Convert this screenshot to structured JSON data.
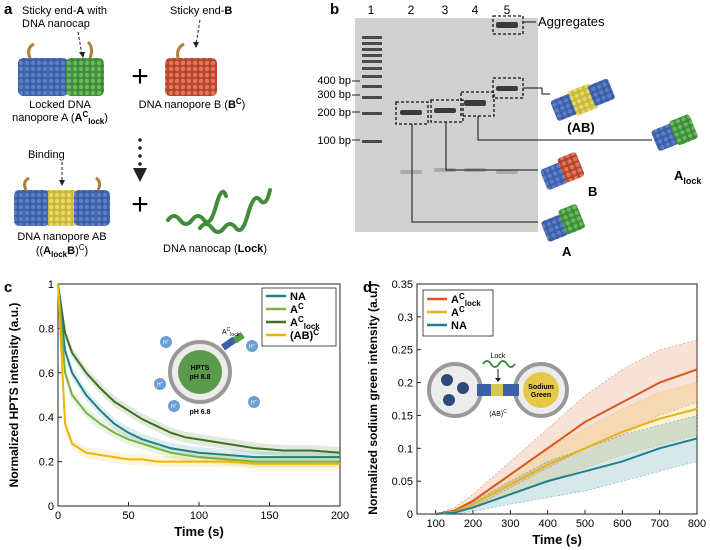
{
  "panel_a": {
    "letter": "a",
    "sticky_a_line1": "Sticky end-",
    "sticky_a_bold": "A",
    "sticky_a_line1_end": " with",
    "sticky_a_line2": "DNA nanocap",
    "sticky_b_prefix": "Sticky end-",
    "sticky_b_bold": "B",
    "locked_line1": "Locked DNA",
    "locked_line2_prefix": "nanopore A (",
    "locked_line2_A": "A",
    "locked_line2_sup": "C",
    "locked_line2_sub": "lock",
    "locked_line2_end": ")",
    "poreB_line1": "DNA nanopore B (",
    "poreB_B": "B",
    "poreB_sup": "C",
    "poreB_end": ")",
    "binding": "Binding",
    "ab_line1": "DNA nanopore AB",
    "ab_line2_open": "((",
    "ab_line2_A": "A",
    "ab_line2_sub": "lock",
    "ab_line2_B": "B",
    "ab_line2_close": ")",
    "ab_line2_sup": "C",
    "ab_line2_end": ")",
    "nanocap_prefix": "DNA nanocap (",
    "nanocap_bold": "Lock",
    "nanocap_end": ")",
    "plus": "+"
  },
  "panel_b": {
    "letter": "b",
    "lanes": [
      "1",
      "2",
      "3",
      "4",
      "5"
    ],
    "ladder": [
      "400 bp",
      "300 bp",
      "200 bp",
      "100 bp"
    ],
    "aggregates": "Aggregates",
    "label_ab": "(AB)",
    "label_alock": "A",
    "label_alock_sub": "lock",
    "label_b": "B",
    "label_a": "A"
  },
  "panel_c": {
    "letter": "c",
    "chart_data": {
      "type": "line",
      "title": "",
      "xlabel": "Time (s)",
      "ylabel": "Normalized HPTS intensity (a.u.)",
      "xlim": [
        0,
        200
      ],
      "ylim": [
        0,
        1
      ],
      "xticks": [
        "0",
        "50",
        "100",
        "150",
        "200"
      ],
      "yticks": [
        "0",
        "0.2",
        "0.4",
        "0.6",
        "0.8",
        "1"
      ],
      "legend": [
        {
          "name": "NA",
          "color": "#1f7f8c"
        },
        {
          "name": "A^C",
          "color": "#7ab341"
        },
        {
          "name": "A^C_lock",
          "color": "#3f6f20"
        },
        {
          "name": "(AB)^C",
          "color": "#f0b400"
        }
      ],
      "legend_display": [
        "NA",
        "A",
        "A",
        "(AB)"
      ],
      "legend_sup": [
        "",
        "C",
        "C",
        "C"
      ],
      "legend_sub": [
        "",
        "",
        "lock",
        ""
      ],
      "x": [
        0,
        5,
        10,
        20,
        30,
        40,
        50,
        60,
        70,
        80,
        90,
        100,
        120,
        140,
        160,
        180,
        200
      ],
      "series": [
        {
          "name": "A^C_lock",
          "color": "#3f6f20",
          "values": [
            1.0,
            0.78,
            0.69,
            0.6,
            0.53,
            0.47,
            0.43,
            0.39,
            0.36,
            0.33,
            0.31,
            0.3,
            0.28,
            0.26,
            0.25,
            0.25,
            0.24
          ]
        },
        {
          "name": "NA",
          "color": "#1f7f8c",
          "values": [
            1.0,
            0.7,
            0.6,
            0.5,
            0.43,
            0.37,
            0.33,
            0.3,
            0.28,
            0.26,
            0.25,
            0.24,
            0.23,
            0.22,
            0.22,
            0.22,
            0.22
          ]
        },
        {
          "name": "A^C",
          "color": "#7ab341",
          "values": [
            1.0,
            0.6,
            0.5,
            0.42,
            0.37,
            0.33,
            0.3,
            0.28,
            0.26,
            0.24,
            0.23,
            0.22,
            0.21,
            0.2,
            0.2,
            0.2,
            0.2
          ]
        },
        {
          "name": "(AB)^C",
          "color": "#f0b400",
          "values": [
            1.0,
            0.37,
            0.28,
            0.24,
            0.23,
            0.22,
            0.21,
            0.21,
            0.2,
            0.2,
            0.2,
            0.2,
            0.2,
            0.19,
            0.19,
            0.19,
            0.19
          ]
        }
      ],
      "inset": {
        "hpts": "HPTS",
        "ph_in": "pH 8.8",
        "ph_out": "pH 6.8",
        "ac_label": "A",
        "ac_sup": "C",
        "ac_sub": "lock",
        "h_label": "H",
        "h_sup": "+"
      }
    }
  },
  "panel_d": {
    "letter": "d",
    "chart_data": {
      "type": "line",
      "title": "",
      "xlabel": "Time (s)",
      "ylabel": "Normalized sodium green intensity (a.u.)",
      "xlim": [
        50,
        800
      ],
      "ylim": [
        0,
        0.35
      ],
      "xticks": [
        "100",
        "200",
        "300",
        "400",
        "500",
        "600",
        "700",
        "800"
      ],
      "yticks": [
        "0",
        "0.05",
        "0.1",
        "0.15",
        "0.2",
        "0.25",
        "0.3",
        "0.35"
      ],
      "legend": [
        {
          "name": "A^C_lock",
          "color": "#d9571d"
        },
        {
          "name": "A^C",
          "color": "#e8b21a"
        },
        {
          "name": "NA",
          "color": "#1f7f8c"
        }
      ],
      "legend_display": [
        "A",
        "A",
        "NA"
      ],
      "legend_sup": [
        "C",
        "C",
        ""
      ],
      "legend_sub": [
        "lock",
        "",
        ""
      ],
      "x": [
        100,
        150,
        200,
        300,
        400,
        500,
        600,
        700,
        800
      ],
      "series": [
        {
          "name": "A^C_lock",
          "color": "#d9571d",
          "values": [
            0.0,
            0.005,
            0.02,
            0.06,
            0.1,
            0.14,
            0.17,
            0.2,
            0.22
          ]
        },
        {
          "name": "A^C",
          "color": "#e8b21a",
          "values": [
            0.0,
            0.003,
            0.015,
            0.045,
            0.075,
            0.1,
            0.125,
            0.145,
            0.16
          ]
        },
        {
          "name": "NA",
          "color": "#1f7f8c",
          "values": [
            0.0,
            0.002,
            0.01,
            0.03,
            0.05,
            0.065,
            0.08,
            0.1,
            0.115
          ]
        }
      ],
      "bands": [
        {
          "name": "A^C_lock",
          "upper": [
            0.0,
            0.01,
            0.03,
            0.08,
            0.13,
            0.18,
            0.22,
            0.25,
            0.265
          ],
          "lower": [
            0.0,
            0.002,
            0.01,
            0.04,
            0.07,
            0.1,
            0.12,
            0.15,
            0.17
          ]
        },
        {
          "name": "A^C",
          "upper": [
            0.0,
            0.006,
            0.022,
            0.06,
            0.1,
            0.13,
            0.16,
            0.185,
            0.2
          ],
          "lower": [
            0.0,
            0.001,
            0.008,
            0.03,
            0.05,
            0.07,
            0.09,
            0.105,
            0.12
          ]
        },
        {
          "name": "NA",
          "upper": [
            0.0,
            0.005,
            0.018,
            0.05,
            0.08,
            0.1,
            0.12,
            0.135,
            0.15
          ],
          "lower": [
            0.0,
            0.0,
            0.004,
            0.015,
            0.025,
            0.035,
            0.05,
            0.065,
            0.08
          ]
        }
      ],
      "inset": {
        "lock": "Lock",
        "sodium": "Sodium",
        "green": "Green",
        "ab": "(AB)",
        "ab_sup": "C"
      }
    }
  },
  "colors": {
    "dna_blue": "#3d5fa8",
    "dna_green": "#4f9e45",
    "dna_red": "#c8573e",
    "dna_yellow": "#d8c848",
    "gel_bg": "#cfcfcf"
  }
}
